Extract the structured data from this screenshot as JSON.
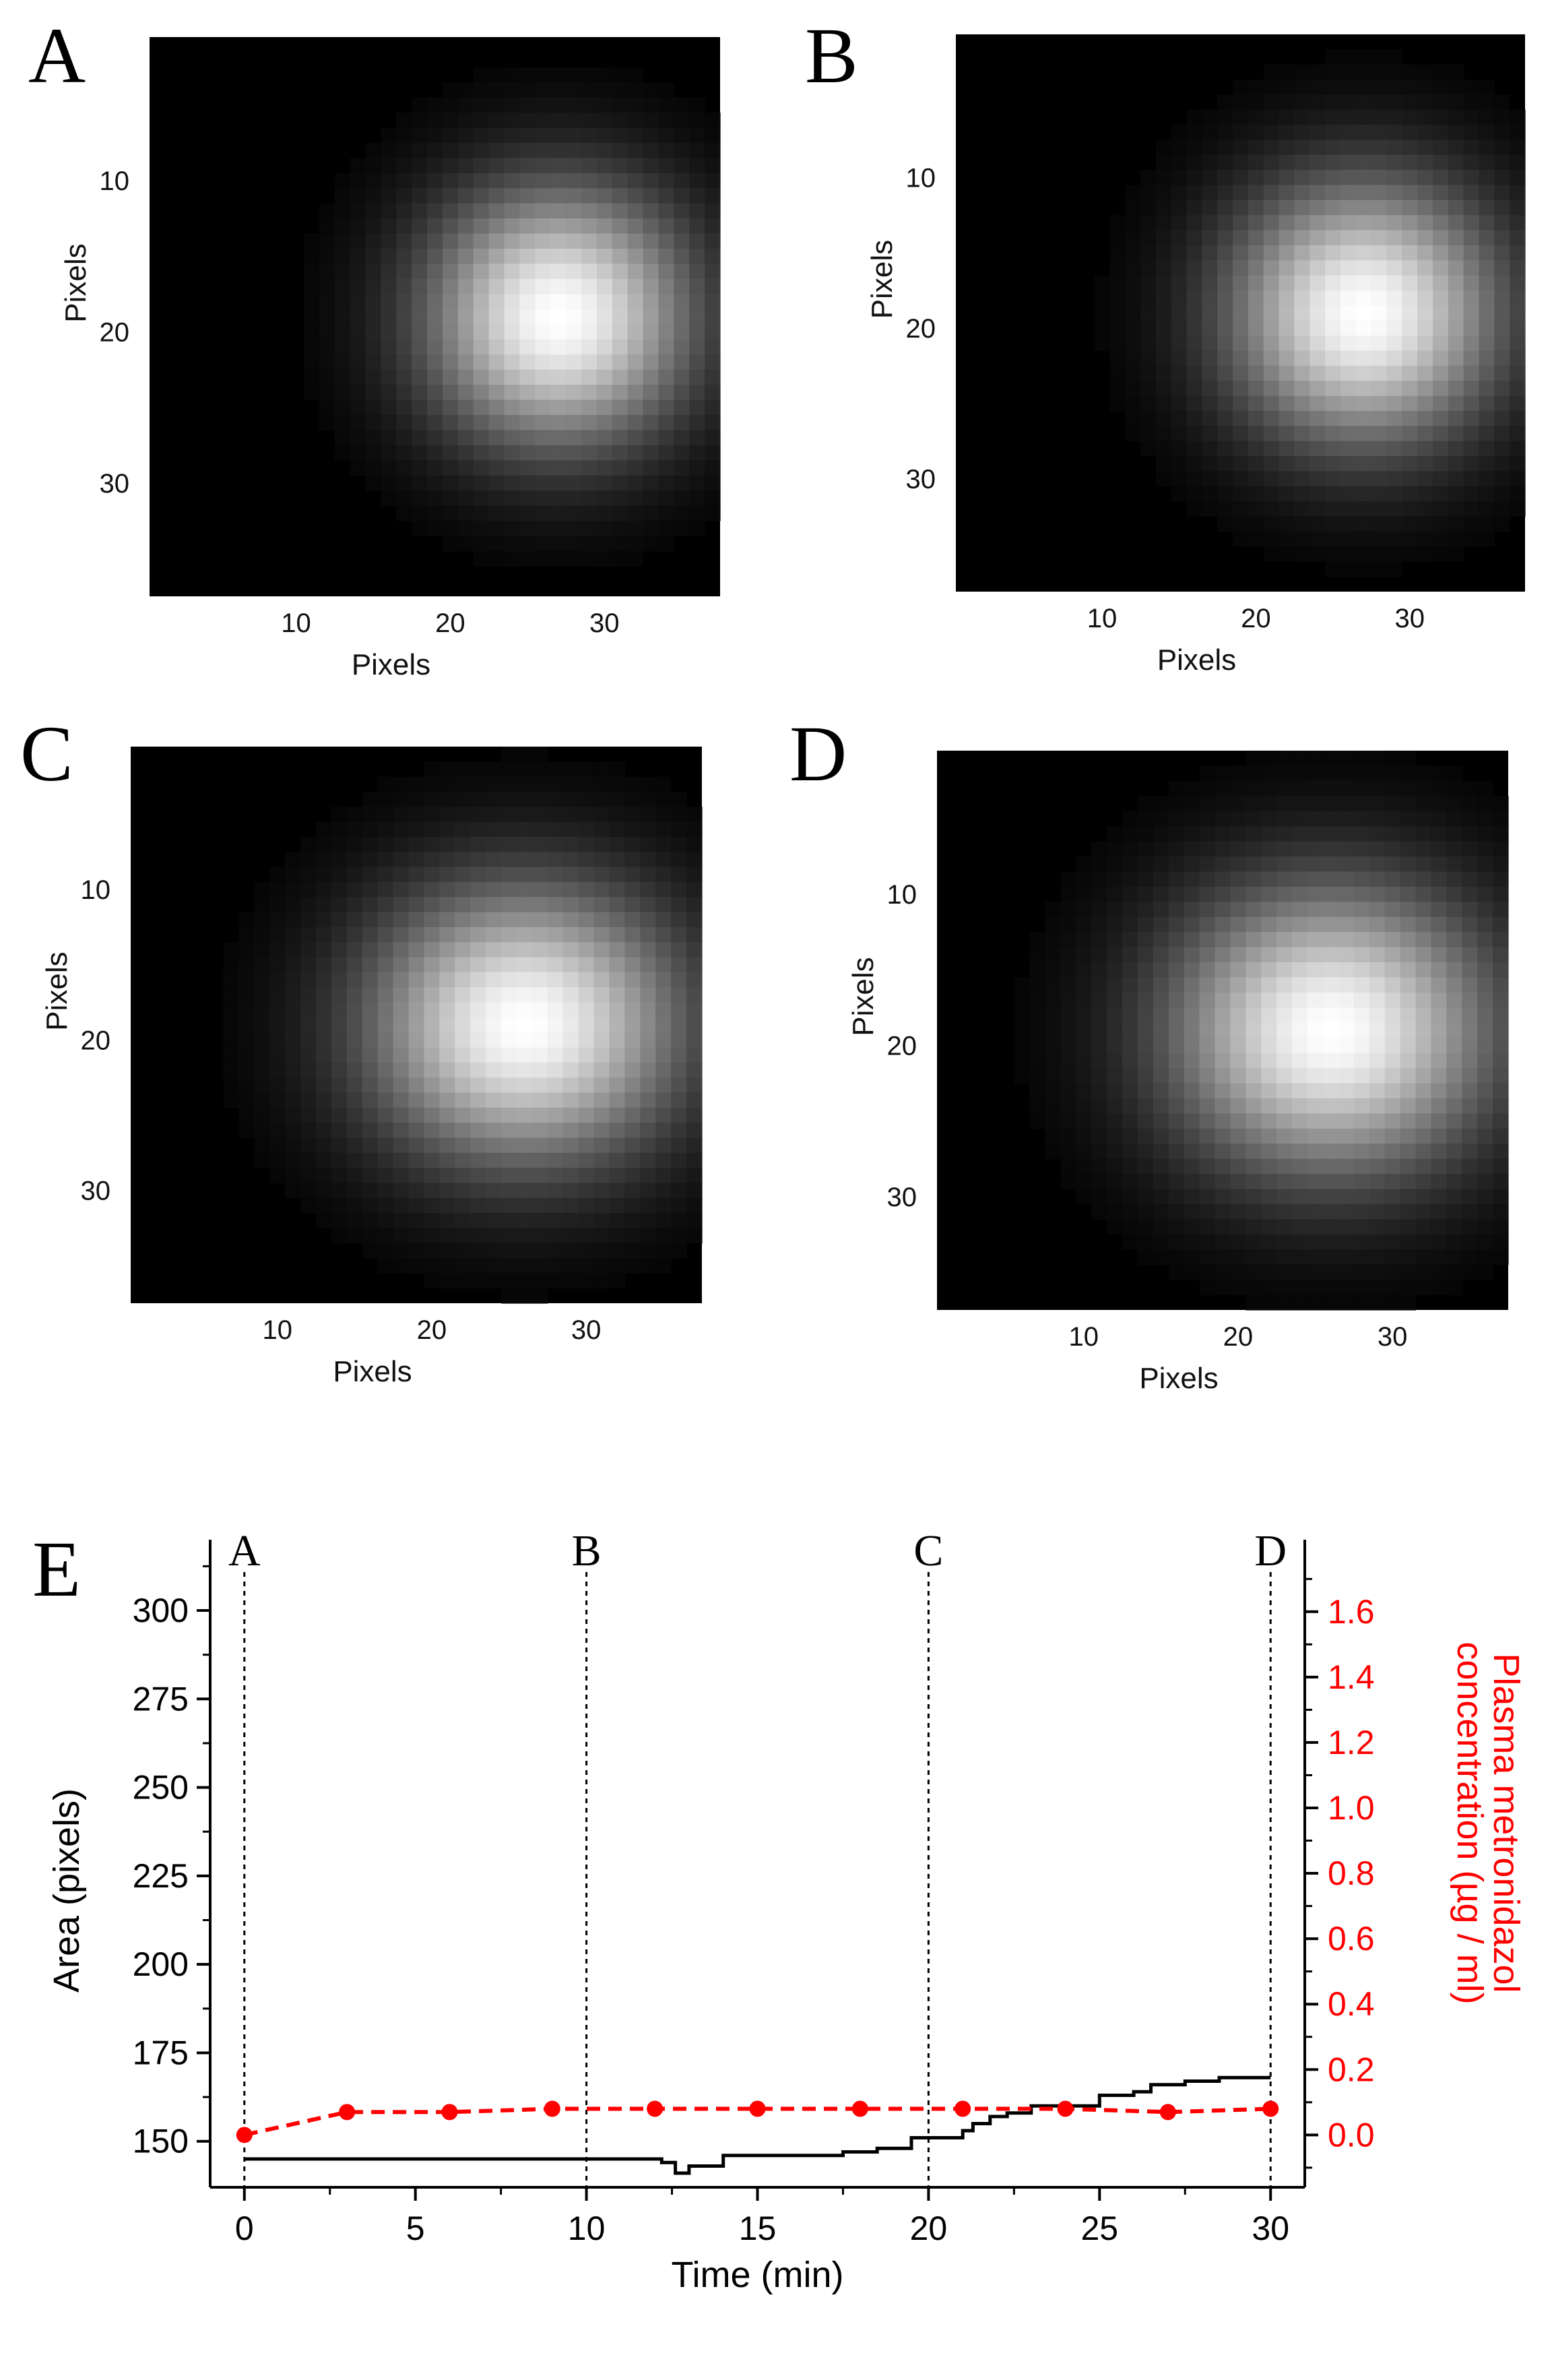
{
  "chart_data": [
    {
      "type": "heatmap",
      "panel": "A",
      "xlabel": "Pixels",
      "ylabel": "Pixels",
      "x_ticks": [
        10,
        20,
        30
      ],
      "y_ticks": [
        10,
        20,
        30
      ],
      "grid_size": 37,
      "spot_center": [
        27,
        19
      ],
      "spot_sigma": [
        5.6,
        5.6
      ],
      "colormap": "grayscale"
    },
    {
      "type": "heatmap",
      "panel": "B",
      "xlabel": "Pixels",
      "ylabel": "Pixels",
      "x_ticks": [
        10,
        20,
        30
      ],
      "y_ticks": [
        10,
        20,
        30
      ],
      "grid_size": 37,
      "spot_center": [
        27,
        19
      ],
      "spot_sigma": [
        5.7,
        5.7
      ],
      "colormap": "grayscale"
    },
    {
      "type": "heatmap",
      "panel": "C",
      "xlabel": "Pixels",
      "ylabel": "Pixels",
      "x_ticks": [
        10,
        20,
        30
      ],
      "y_ticks": [
        10,
        20,
        30
      ],
      "grid_size": 37,
      "spot_center": [
        26,
        19
      ],
      "spot_sigma": [
        6.6,
        6.0
      ],
      "colormap": "grayscale"
    },
    {
      "type": "heatmap",
      "panel": "D",
      "xlabel": "Pixels",
      "ylabel": "Pixels",
      "x_ticks": [
        10,
        20,
        30
      ],
      "y_ticks": [
        10,
        20,
        30
      ],
      "grid_size": 37,
      "spot_center": [
        26,
        19
      ],
      "spot_sigma": [
        6.8,
        6.2
      ],
      "colormap": "grayscale"
    },
    {
      "type": "line",
      "panel": "E",
      "xlabel": "Time (min)",
      "ylabel": "Area (pixels)",
      "y2label_line1": "Plasma metronidazol",
      "y2label_line2": "concentration (µg / ml)",
      "xlim": [
        -1,
        31
      ],
      "ylim": [
        137,
        320
      ],
      "y2lim": [
        -0.16,
        1.82
      ],
      "x_ticks": [
        0,
        5,
        10,
        15,
        20,
        25,
        30
      ],
      "y_ticks": [
        150,
        175,
        200,
        225,
        250,
        275,
        300
      ],
      "y2_ticks": [
        "0.0",
        "0.2",
        "0.4",
        "0.6",
        "0.8",
        "1.0",
        "1.2",
        "1.4",
        "1.6"
      ],
      "markers": [
        {
          "label": "A",
          "x": 0
        },
        {
          "label": "B",
          "x": 10
        },
        {
          "label": "C",
          "x": 20
        },
        {
          "label": "D",
          "x": 30
        }
      ],
      "series": [
        {
          "axis": "left",
          "color": "#000000",
          "style": "step",
          "points": [
            [
              0,
              145
            ],
            [
              12.2,
              145
            ],
            [
              12.2,
              144
            ],
            [
              12.6,
              144
            ],
            [
              12.6,
              141
            ],
            [
              13.0,
              141
            ],
            [
              13.0,
              143
            ],
            [
              14.0,
              143
            ],
            [
              14.0,
              146
            ],
            [
              17.5,
              146
            ],
            [
              17.5,
              147
            ],
            [
              18.5,
              147
            ],
            [
              18.5,
              148
            ],
            [
              19.5,
              148
            ],
            [
              19.5,
              151
            ],
            [
              21.0,
              151
            ],
            [
              21.0,
              153
            ],
            [
              21.3,
              153
            ],
            [
              21.3,
              155
            ],
            [
              21.8,
              155
            ],
            [
              21.8,
              157
            ],
            [
              22.3,
              157
            ],
            [
              22.3,
              158
            ],
            [
              23.0,
              158
            ],
            [
              23.0,
              160
            ],
            [
              25.0,
              160
            ],
            [
              25.0,
              163
            ],
            [
              26.0,
              163
            ],
            [
              26.0,
              164
            ],
            [
              26.5,
              164
            ],
            [
              26.5,
              166
            ],
            [
              27.5,
              166
            ],
            [
              27.5,
              167
            ],
            [
              28.5,
              167
            ],
            [
              28.5,
              168
            ],
            [
              30,
              168
            ]
          ]
        },
        {
          "axis": "right",
          "color": "#ff0000",
          "style": "dashed",
          "x": [
            0,
            3,
            6,
            9,
            12,
            15,
            18,
            21,
            24,
            27,
            30
          ],
          "values": [
            0.0,
            0.07,
            0.07,
            0.08,
            0.08,
            0.08,
            0.08,
            0.08,
            0.08,
            0.07,
            0.08
          ]
        }
      ]
    }
  ],
  "panel_labels": {
    "A": "A",
    "B": "B",
    "C": "C",
    "D": "D",
    "E": "E"
  },
  "colors": {
    "area_series": "#000000",
    "concentration_series": "#ff0000"
  }
}
